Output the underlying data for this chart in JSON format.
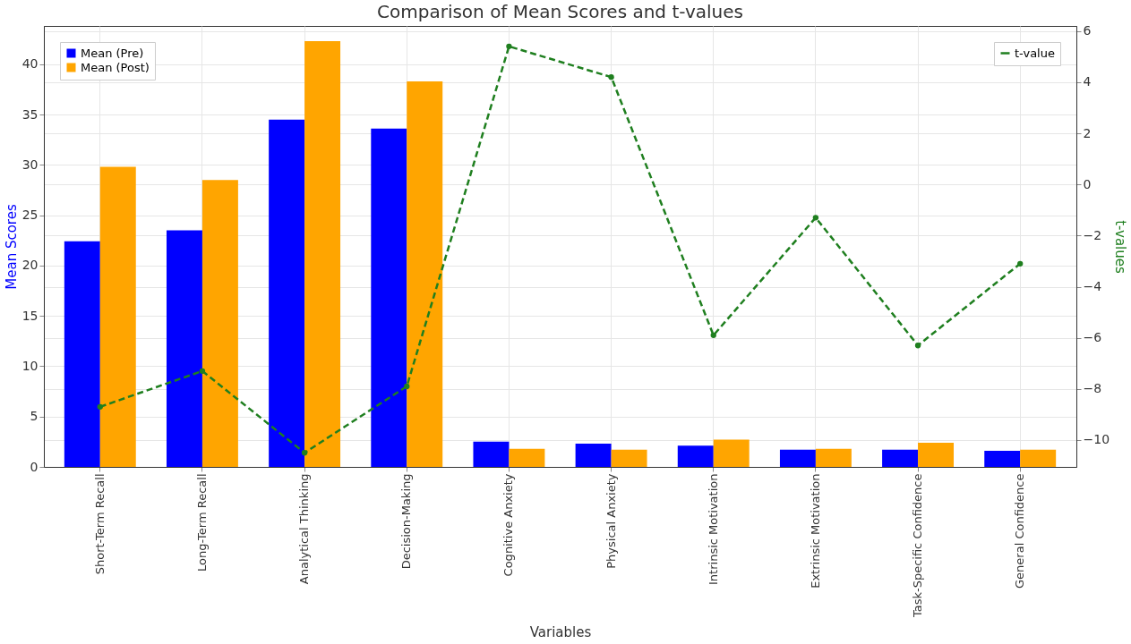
{
  "chart_data": {
    "type": "bar",
    "title": "Comparison of Mean Scores and t-values",
    "xlabel": "Variables",
    "ylabel": "Mean Scores",
    "y2label": "t-values",
    "categories": [
      "Short-Term Recall",
      "Long-Term Recall",
      "Analytical Thinking",
      "Decision-Making",
      "Cognitive Anxiety",
      "Physical Anxiety",
      "Intrinsic Motivation",
      "Extrinsic Motivation",
      "Task-Specific Confidence",
      "General Confidence"
    ],
    "series": [
      {
        "name": "Mean (Pre)",
        "color": "#0000ff",
        "values": [
          22.4,
          23.5,
          34.5,
          33.6,
          2.5,
          2.3,
          2.1,
          1.7,
          1.7,
          1.6
        ]
      },
      {
        "name": "Mean (Post)",
        "color": "#ffa500",
        "values": [
          29.8,
          28.5,
          42.3,
          38.3,
          1.8,
          1.7,
          2.7,
          1.8,
          2.4,
          1.7
        ]
      },
      {
        "name": "t-value",
        "type": "line",
        "axis": "y2",
        "color": "#1f7f1f",
        "marker": "circle",
        "line_style": "dashed",
        "values": [
          -8.7,
          -7.3,
          -10.5,
          -7.9,
          5.4,
          4.2,
          -5.9,
          -1.3,
          -6.3,
          -3.1
        ]
      }
    ],
    "ylim": [
      0,
      43.8
    ],
    "yticks": [
      0,
      5,
      10,
      15,
      20,
      25,
      30,
      35,
      40
    ],
    "y2lim": [
      -11.05,
      6.2
    ],
    "y2ticks": [
      -10,
      -8,
      -6,
      -4,
      -2,
      0,
      2,
      4,
      6
    ],
    "grid": true,
    "legend": "top left"
  }
}
